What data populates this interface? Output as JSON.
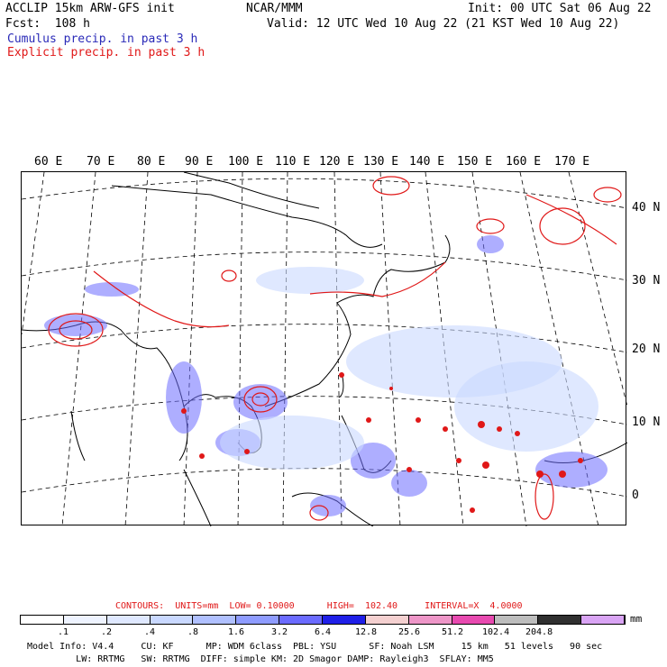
{
  "header": {
    "title_left": "ACCLIP 15km ARW-GFS init",
    "forecast": "Fcst:  108 h",
    "center": "NCAR/MMM",
    "init": "Init: 00 UTC Sat 06 Aug 22",
    "valid": "Valid: 12 UTC Wed 10 Aug 22 (21 KST Wed 10 Aug 22)",
    "cumulus_label": "Cumulus precip. in past 3 h",
    "explicit_label": "Explicit precip. in past 3 h"
  },
  "map": {
    "lon_labels": [
      "60 E",
      "70 E",
      "80 E",
      "90 E",
      "100 E",
      "110 E",
      "120 E",
      "130 E",
      "140 E",
      "150 E",
      "160 E",
      "170 E"
    ],
    "lat_labels": [
      "40 N",
      "30 N",
      "20 N",
      "10 N",
      "0"
    ],
    "colors": {
      "cumulus": "#2a2ab8",
      "explicit": "#e01818",
      "coast": "#000000"
    }
  },
  "contours": {
    "line": "CONTOURS:  UNITS=mm  LOW= 0.10000      HIGH=  102.40     INTERVAL=X  4.0000"
  },
  "legend": {
    "colors": [
      "#ffffff",
      "#eef3ff",
      "#dfe8ff",
      "#c9d8ff",
      "#b0c0ff",
      "#8f9cff",
      "#6b6bff",
      "#1f1fe8",
      "#f4d0d0",
      "#ee96c8",
      "#e84ab0",
      "#bdbdbd",
      "#303030",
      "#d9a4f4"
    ],
    "ticks": [
      ".1",
      ".2",
      ".4",
      ".8",
      "1.6",
      "3.2",
      "6.4",
      "12.8",
      "25.6",
      "51.2",
      "102.4",
      "204.8"
    ],
    "unit": "mm"
  },
  "footer": {
    "line1": "Model Info: V4.4     CU: KF      MP: WDM 6class  PBL: YSU      SF: Noah LSM     15 km   51 levels   90 sec",
    "line2": "         LW: RRTMG   SW: RRTMG  DIFF: simple KM: 2D Smagor DAMP: Rayleigh3  SFLAY: MM5"
  }
}
